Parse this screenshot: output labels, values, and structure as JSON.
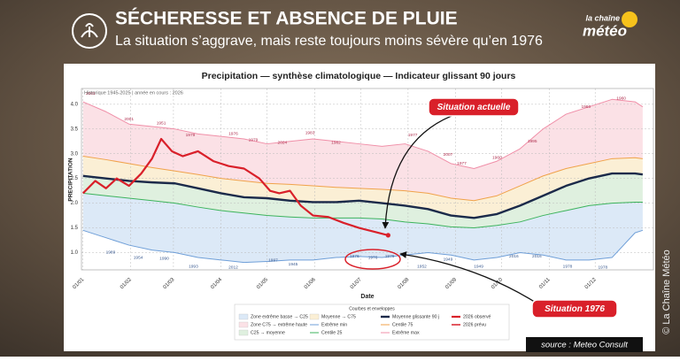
{
  "header": {
    "title": "SÉCHERESSE ET ABSENCE DE PLUIE",
    "subtitle": "La situation s’aggrave, mais reste toujours moins sévère qu’en 1976",
    "brand_top": "la chaîne",
    "brand_bottom": "météo"
  },
  "callouts": {
    "current": "Situation actuelle",
    "past": "Situation 1976"
  },
  "source": "source : Meteo Consult",
  "copyright": "© La Chaîne Météo",
  "chart_data": {
    "type": "line",
    "title": "Precipitation — synthèse climatologique — Indicateur glissant 90 jours",
    "subtitle": "Historique 1945-2025 | année en cours : 2026",
    "x_label": "Date",
    "y_label": "PRECIPITATION",
    "legend_title": "Courbes et enveloppes",
    "grid": true,
    "xlim": [
      -1,
      372
    ],
    "ylim": [
      0.65,
      4.32
    ],
    "xticks": [
      {
        "value": 0,
        "label": "01/01"
      },
      {
        "value": 31,
        "label": "01/02"
      },
      {
        "value": 59,
        "label": "01/03"
      },
      {
        "value": 90,
        "label": "01/04"
      },
      {
        "value": 120,
        "label": "01/05"
      },
      {
        "value": 151,
        "label": "01/06"
      },
      {
        "value": 181,
        "label": "01/07"
      },
      {
        "value": 212,
        "label": "01/08"
      },
      {
        "value": 243,
        "label": "01/09"
      },
      {
        "value": 273,
        "label": "01/10"
      },
      {
        "value": 304,
        "label": "01/11"
      },
      {
        "value": 334,
        "label": "01/12"
      }
    ],
    "yticks": [
      {
        "value": 1,
        "label": "1.0"
      },
      1.5,
      {
        "value": 2,
        "label": "2.0"
      },
      2.5,
      {
        "value": 3,
        "label": "3.0"
      },
      3.5,
      {
        "value": 4,
        "label": "4.0"
      }
    ],
    "x": [
      0,
      15,
      30,
      45,
      60,
      75,
      90,
      105,
      120,
      135,
      150,
      165,
      180,
      195,
      210,
      225,
      240,
      255,
      270,
      285,
      300,
      315,
      330,
      345,
      360,
      365
    ],
    "zones": [
      {
        "name": "Zone extrême basse → C25",
        "color": "#dce9f7"
      },
      {
        "name": "C25 → moyenne",
        "color": "#dff0df"
      },
      {
        "name": "Moyenne → C75",
        "color": "#fbefd5"
      },
      {
        "name": "Zone C75 → extrême haute",
        "color": "#fbe1e6"
      }
    ],
    "series": [
      {
        "name": "Extrême min",
        "color": "#6f9fd8",
        "line_width": 1,
        "values": [
          1.45,
          1.3,
          1.15,
          1.05,
          1.0,
          0.9,
          0.85,
          0.8,
          0.82,
          0.85,
          0.85,
          0.9,
          0.92,
          0.9,
          0.95,
          1.0,
          0.95,
          0.85,
          0.9,
          1.0,
          0.95,
          0.85,
          0.85,
          0.9,
          1.4,
          1.45
        ]
      },
      {
        "name": "Centile 25",
        "color": "#3cb35c",
        "line_width": 1,
        "values": [
          2.2,
          2.15,
          2.1,
          2.05,
          2.0,
          1.92,
          1.85,
          1.8,
          1.75,
          1.72,
          1.7,
          1.7,
          1.7,
          1.68,
          1.62,
          1.58,
          1.52,
          1.5,
          1.55,
          1.62,
          1.75,
          1.85,
          1.95,
          2.0,
          2.02,
          2.02
        ]
      },
      {
        "name": "Moyenne glissante 90 j",
        "color": "#1b2a4a",
        "line_width": 2.4,
        "values": [
          2.55,
          2.5,
          2.45,
          2.42,
          2.4,
          2.3,
          2.2,
          2.12,
          2.1,
          2.05,
          2.02,
          2.02,
          2.05,
          2.0,
          1.95,
          1.88,
          1.75,
          1.7,
          1.78,
          1.95,
          2.15,
          2.35,
          2.5,
          2.6,
          2.6,
          2.58
        ]
      },
      {
        "name": "Centile 75",
        "color": "#f0a24a",
        "line_width": 1,
        "values": [
          2.95,
          2.88,
          2.8,
          2.72,
          2.65,
          2.58,
          2.5,
          2.45,
          2.4,
          2.38,
          2.35,
          2.32,
          2.3,
          2.28,
          2.25,
          2.2,
          2.1,
          2.05,
          2.15,
          2.35,
          2.55,
          2.7,
          2.8,
          2.9,
          2.92,
          2.9
        ]
      },
      {
        "name": "Extrême max",
        "color": "#f08fa8",
        "line_width": 1,
        "values": [
          4.05,
          3.85,
          3.6,
          3.55,
          3.5,
          3.4,
          3.35,
          3.3,
          3.2,
          3.25,
          3.3,
          3.25,
          3.2,
          3.15,
          3.2,
          3.05,
          2.8,
          2.7,
          2.85,
          3.1,
          3.5,
          3.8,
          3.95,
          4.1,
          4.05,
          3.95
        ]
      },
      {
        "name": "2026 observé",
        "color": "#d9202a",
        "line_width": 2.2,
        "x": [
          0,
          8,
          15,
          22,
          30,
          38,
          45,
          51,
          58,
          65,
          75,
          85,
          95,
          105,
          115,
          122,
          128,
          135,
          142,
          150,
          160,
          170,
          180,
          190,
          199
        ],
        "values": [
          2.2,
          2.45,
          2.3,
          2.5,
          2.35,
          2.6,
          2.9,
          3.3,
          3.05,
          2.95,
          3.05,
          2.85,
          2.75,
          2.7,
          2.5,
          2.25,
          2.2,
          2.25,
          1.95,
          1.75,
          1.72,
          1.6,
          1.5,
          1.42,
          1.35
        ]
      },
      {
        "name": "2026 prévu",
        "color": "#d9202a",
        "line_width": 1.5,
        "x": [
          199
        ],
        "values": [
          1.35
        ]
      }
    ],
    "max_labels": {
      "color": "#b03050",
      "items": [
        {
          "text": "2001",
          "x": 5,
          "y": 4.22
        },
        {
          "text": "2001",
          "x": 30,
          "y": 3.7
        },
        {
          "text": "1951",
          "x": 51,
          "y": 3.62
        },
        {
          "text": "1979",
          "x": 70,
          "y": 3.38
        },
        {
          "text": "1976",
          "x": 98,
          "y": 3.4
        },
        {
          "text": "1979",
          "x": 111,
          "y": 3.28
        },
        {
          "text": "2024",
          "x": 130,
          "y": 3.22
        },
        {
          "text": "1983",
          "x": 148,
          "y": 3.42
        },
        {
          "text": "1982",
          "x": 165,
          "y": 3.22
        },
        {
          "text": "1977",
          "x": 215,
          "y": 3.38
        },
        {
          "text": "2007",
          "x": 238,
          "y": 2.98
        },
        {
          "text": "1977",
          "x": 247,
          "y": 2.8
        },
        {
          "text": "1960",
          "x": 270,
          "y": 2.92
        },
        {
          "text": "1995",
          "x": 293,
          "y": 3.25
        },
        {
          "text": "1960",
          "x": 328,
          "y": 3.95
        },
        {
          "text": "1960",
          "x": 351,
          "y": 4.12
        }
      ]
    },
    "min_labels": {
      "color": "#3a5a90",
      "items": [
        {
          "text": "1989",
          "x": 18,
          "y": 1.0
        },
        {
          "text": "1954",
          "x": 36,
          "y": 0.9
        },
        {
          "text": "1990",
          "x": 53,
          "y": 0.88
        },
        {
          "text": "1993",
          "x": 72,
          "y": 0.72
        },
        {
          "text": "2012",
          "x": 98,
          "y": 0.7
        },
        {
          "text": "1997",
          "x": 124,
          "y": 0.84
        },
        {
          "text": "1945",
          "x": 137,
          "y": 0.76
        },
        {
          "text": "1976",
          "x": 177,
          "y": 0.92
        },
        {
          "text": "1976",
          "x": 189,
          "y": 0.9
        },
        {
          "text": "1976",
          "x": 200,
          "y": 0.92
        },
        {
          "text": "1952",
          "x": 221,
          "y": 0.72
        },
        {
          "text": "1949",
          "x": 238,
          "y": 0.86
        },
        {
          "text": "1949",
          "x": 258,
          "y": 0.72
        },
        {
          "text": "2016",
          "x": 281,
          "y": 0.92
        },
        {
          "text": "2016",
          "x": 296,
          "y": 0.92
        },
        {
          "text": "1978",
          "x": 316,
          "y": 0.72
        },
        {
          "text": "1978",
          "x": 339,
          "y": 0.7
        }
      ]
    }
  }
}
